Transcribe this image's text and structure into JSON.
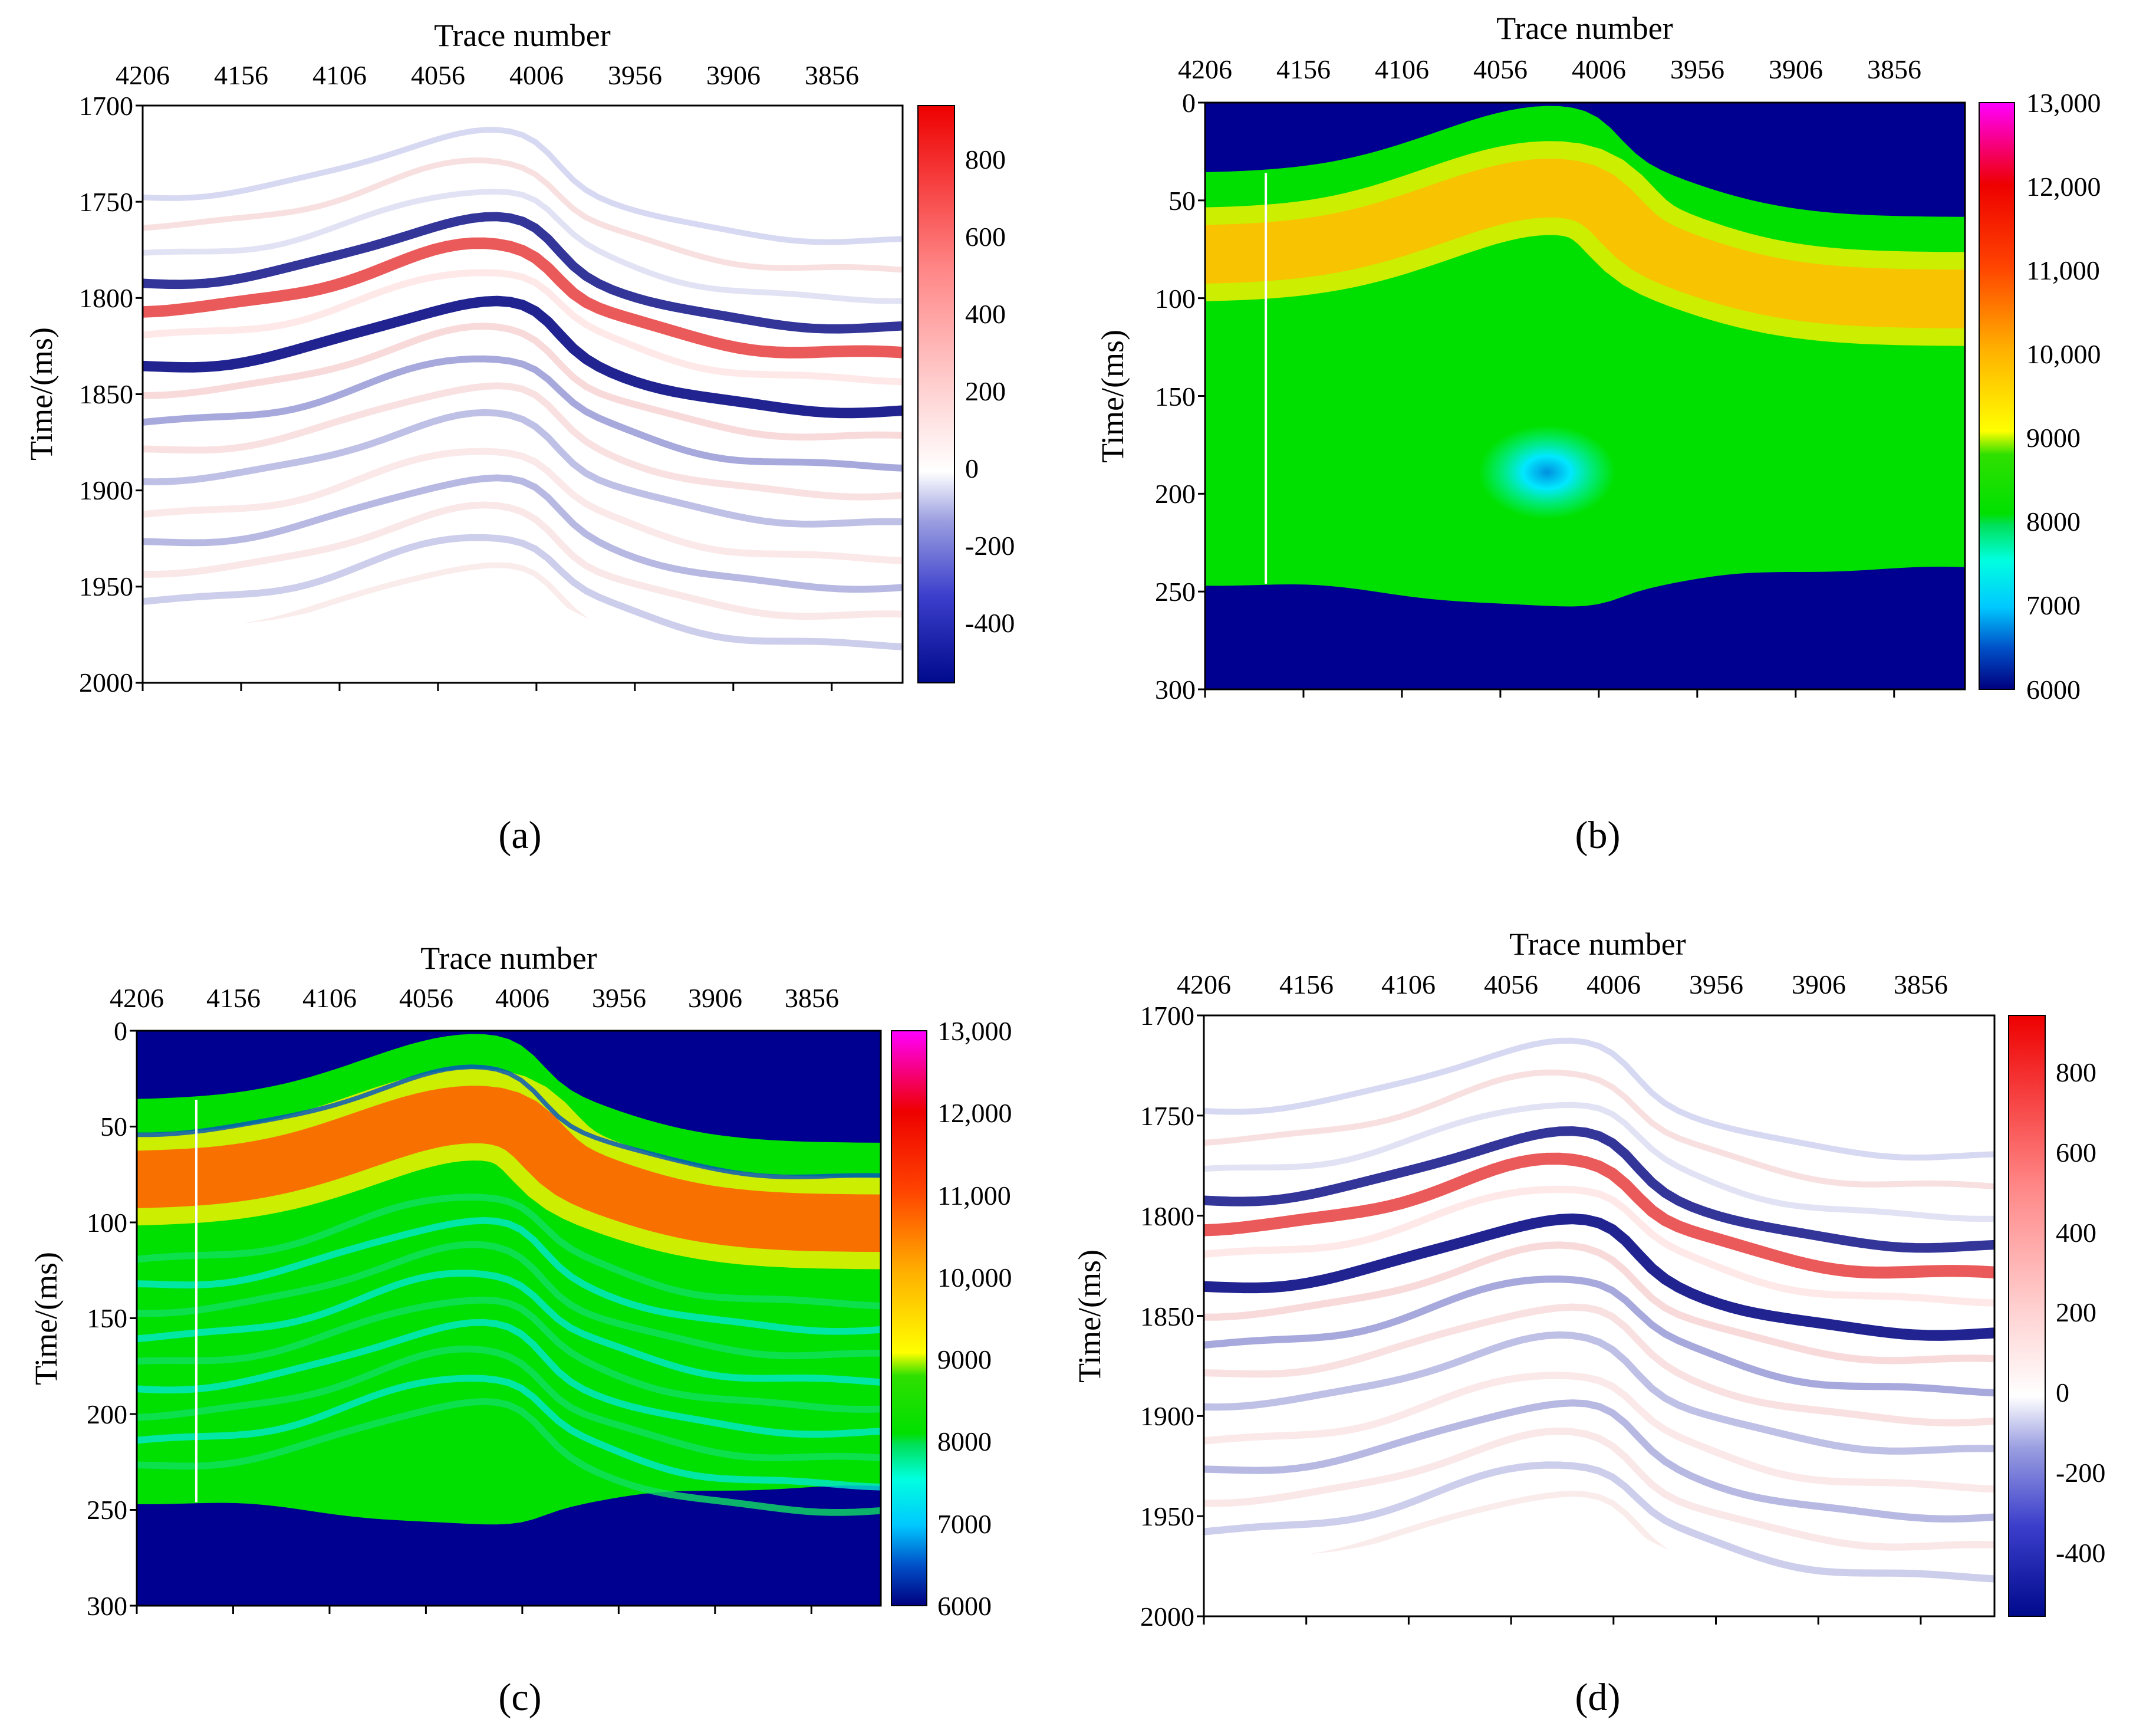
{
  "chart_data": [
    {
      "panel": "a",
      "type": "heatmap",
      "subtitle": "(a)",
      "xlabel": "Trace number",
      "ylabel": "Time/(ms)",
      "x_ticks": [
        "4206",
        "4156",
        "4106",
        "4056",
        "4006",
        "3956",
        "3906",
        "3856"
      ],
      "y_ticks": [
        "1700",
        "1750",
        "1800",
        "1850",
        "1900",
        "1950",
        "2000"
      ],
      "ylim": [
        1700,
        2000
      ],
      "colorbar": {
        "ticks": [
          "800",
          "600",
          "400",
          "200",
          "0",
          "-200",
          "-400"
        ],
        "range": [
          -550,
          950
        ],
        "colormap": "blue-white-red"
      }
    },
    {
      "panel": "b",
      "type": "heatmap",
      "subtitle": "(b)",
      "xlabel": "Trace number",
      "ylabel": "Time/(ms)",
      "x_ticks": [
        "4206",
        "4156",
        "4106",
        "4056",
        "4006",
        "3956",
        "3906",
        "3856"
      ],
      "y_ticks": [
        "0",
        "50",
        "100",
        "150",
        "200",
        "250",
        "300"
      ],
      "ylim": [
        0,
        300
      ],
      "colorbar": {
        "ticks": [
          "13,000",
          "12,000",
          "11,000",
          "10,000",
          "9000",
          "8000",
          "7000",
          "6000"
        ],
        "range": [
          6000,
          13000
        ],
        "colormap": "jet-like"
      }
    },
    {
      "panel": "c",
      "type": "heatmap",
      "subtitle": "(c)",
      "xlabel": "Trace number",
      "ylabel": "Time/(ms)",
      "x_ticks": [
        "4206",
        "4156",
        "4106",
        "4056",
        "4006",
        "3956",
        "3906",
        "3856"
      ],
      "y_ticks": [
        "0",
        "50",
        "100",
        "150",
        "200",
        "250",
        "300"
      ],
      "ylim": [
        0,
        300
      ],
      "colorbar": {
        "ticks": [
          "13,000",
          "12,000",
          "11,000",
          "10,000",
          "9000",
          "8000",
          "7000",
          "6000"
        ],
        "range": [
          6000,
          13000
        ],
        "colormap": "jet-like"
      }
    },
    {
      "panel": "d",
      "type": "heatmap",
      "subtitle": "(d)",
      "xlabel": "Trace number",
      "ylabel": "Time/(ms)",
      "x_ticks": [
        "4206",
        "4156",
        "4106",
        "4056",
        "4006",
        "3956",
        "3906",
        "3856"
      ],
      "y_ticks": [
        "1700",
        "1750",
        "1800",
        "1850",
        "1900",
        "1950",
        "2000"
      ],
      "ylim": [
        1700,
        2000
      ],
      "colorbar": {
        "ticks": [
          "800",
          "600",
          "400",
          "200",
          "0",
          "-200",
          "-400"
        ],
        "range": [
          -550,
          950
        ],
        "colormap": "blue-white-red"
      }
    }
  ]
}
